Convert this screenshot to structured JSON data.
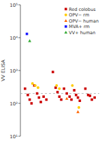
{
  "chart_data": {
    "type": "scatter",
    "ylabel": "VV ELISA",
    "log": "y",
    "legend": "top-right",
    "tick_labels": "y",
    "grid": false,
    "xlim": [
      0.5,
      9.0
    ],
    "ylim": [
      10,
      100000
    ],
    "yticks": [
      {
        "value": 10,
        "label": "10¹"
      },
      {
        "value": 100,
        "label": "10²"
      },
      {
        "value": 1000,
        "label": "10³"
      },
      {
        "value": 10000,
        "label": "10⁴"
      },
      {
        "value": 100000,
        "label": "10⁵"
      }
    ],
    "cutoff": 200,
    "series": [
      {
        "name": "Red colobus",
        "color": "#cc0000",
        "marker": "square",
        "x": [
          1.0,
          1.3,
          1.5,
          1.7,
          2.0,
          2.3,
          2.5,
          2.7,
          3.0,
          3.3,
          4.0,
          4.3,
          4.5,
          4.7,
          4.9,
          5.2,
          5.5,
          5.8,
          6.0,
          6.3,
          6.5,
          6.7,
          6.9,
          7.5,
          7.8,
          8.0,
          8.2,
          8.5
        ],
        "values": [
          280,
          180,
          130,
          100,
          350,
          200,
          150,
          110,
          160,
          130,
          900,
          300,
          220,
          160,
          130,
          280,
          200,
          160,
          130,
          250,
          180,
          150,
          120,
          280,
          180,
          170,
          130,
          150
        ]
      },
      {
        "name": "OPV− rm",
        "color": "#ffcc00",
        "marker": "circle",
        "x": [
          1.8,
          2.1,
          2.4,
          4.4,
          4.7,
          6.1,
          6.8
        ],
        "values": [
          400,
          350,
          300,
          350,
          280,
          350,
          75
        ]
      },
      {
        "name": "OPV− human",
        "color": "#ff6600",
        "marker": "triangle",
        "x": [
          5.5,
          6.7
        ],
        "values": [
          140,
          55
        ]
      },
      {
        "name": "MVA+ rm",
        "color": "#1a1aff",
        "marker": "square",
        "x": [
          1.2
        ],
        "values": [
          13000
        ]
      },
      {
        "name": "VV+ human",
        "color": "#33aa33",
        "marker": "triangle",
        "x": [
          1.5
        ],
        "values": [
          8000
        ]
      }
    ]
  }
}
